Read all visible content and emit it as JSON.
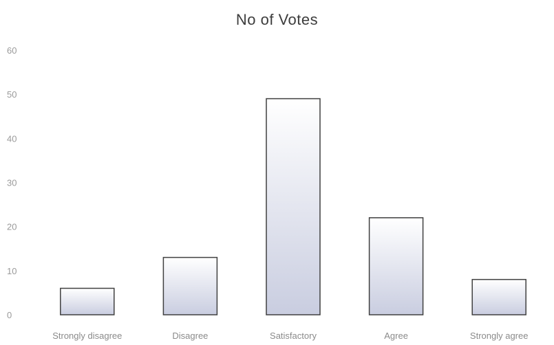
{
  "chart_data": {
    "type": "bar",
    "title": "No of Votes",
    "xlabel": "",
    "ylabel": "",
    "categories": [
      "Strongly disagree",
      "Disagree",
      "Satisfactory",
      "Agree",
      "Strongly agree"
    ],
    "values": [
      6,
      13,
      49,
      22,
      8
    ],
    "ylim": [
      0,
      60
    ],
    "yticks": [
      0,
      10,
      20,
      30,
      40,
      50,
      60
    ],
    "ytick_labels": [
      "0",
      "10",
      "20",
      "30",
      "40",
      "50",
      "60"
    ],
    "grid": false,
    "legend": "none",
    "colors": {
      "bar_fill_top": "#ffffff",
      "bar_fill_bottom": "#c9cde0",
      "bar_stroke": "#3f3f3f",
      "tick_text": "#9a9a9a",
      "title_text": "#3c3c3c"
    }
  }
}
